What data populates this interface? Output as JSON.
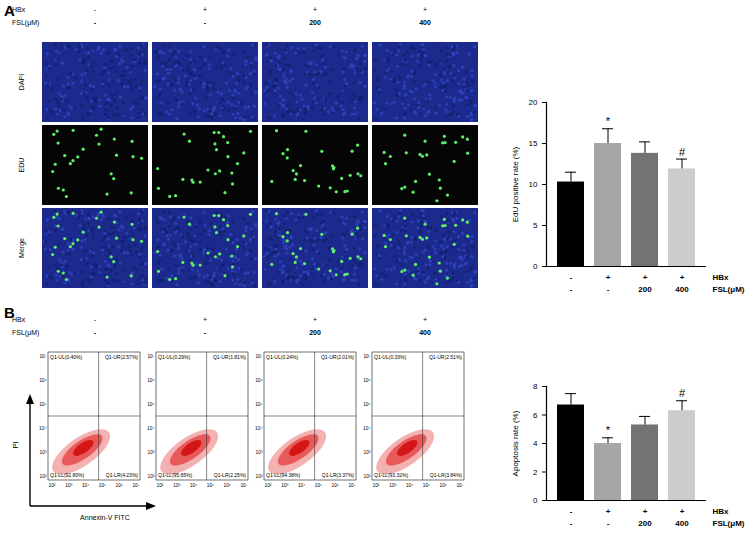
{
  "panels": [
    {
      "label": "A",
      "conditions": [
        {
          "label": "HBx",
          "values": [
            "-",
            "+",
            "+",
            "+"
          ]
        },
        {
          "label": "FSL(μM)",
          "values": [
            "-",
            "-",
            "200",
            "400"
          ]
        }
      ],
      "image_rows": [
        "DAPI",
        "EDU",
        "Merge"
      ]
    },
    {
      "label": "B",
      "conditions": [
        {
          "label": "HBx",
          "values": [
            "-",
            "+",
            "+",
            "+"
          ]
        },
        {
          "label": "FSL(μM)",
          "values": [
            "-",
            "-",
            "200",
            "400"
          ]
        }
      ],
      "flow": {
        "x_label": "Annexin-V FITC",
        "y_label": "PI",
        "ticks": [
          "10²",
          "10³",
          "10⁴",
          "10⁵",
          "10⁶",
          "10⁷"
        ],
        "plots": [
          {
            "UL": "Q1-UL(0.40%)",
            "UR": "Q1-UR(2.57%)",
            "LL": "Q1-LL(92.80%)",
            "LR": "Q1-LR(4.23%)"
          },
          {
            "UL": "Q1-UL(0.29%)",
            "UR": "Q1-UR(1.81%)",
            "LL": "Q1-LL(95.65%)",
            "LR": "Q1-LR(2.25%)"
          },
          {
            "UL": "Q1-UL(0.24%)",
            "UR": "Q1-UR(2.01%)",
            "LL": "Q1-LL(94.38%)",
            "LR": "Q1-LR(3.37%)"
          },
          {
            "UL": "Q1-UL(0.33%)",
            "UR": "Q1-UR(2.51%)",
            "LL": "Q1-LL(93.32%)",
            "LR": "Q1-LR(3.84%)"
          }
        ]
      }
    }
  ],
  "chart_data": [
    {
      "type": "bar",
      "y_label": "EdU positive rate (%)",
      "categories": [
        null,
        null,
        null,
        null
      ],
      "values": [
        10.3,
        15.0,
        13.8,
        11.9
      ],
      "errors": [
        1.2,
        1.8,
        1.4,
        1.2
      ],
      "colors": [
        "#000000",
        "#a6a6a6",
        "#737373",
        "#cccccc"
      ],
      "significance": [
        null,
        "*",
        null,
        "#"
      ],
      "condition_rows": [
        {
          "label": "HBx",
          "values": [
            "-",
            "+",
            "+",
            "+"
          ]
        },
        {
          "label": "FSL(μM)",
          "values": [
            "-",
            "-",
            "200",
            "400"
          ]
        }
      ],
      "ylim": [
        0,
        20
      ],
      "yticks": [
        0,
        5,
        10,
        15,
        20
      ]
    },
    {
      "type": "bar",
      "y_label": "Apoptosis rate (%)",
      "categories": [
        null,
        null,
        null,
        null
      ],
      "values": [
        6.7,
        4.0,
        5.3,
        6.3
      ],
      "errors": [
        0.8,
        0.4,
        0.6,
        0.7
      ],
      "colors": [
        "#000000",
        "#a6a6a6",
        "#737373",
        "#cccccc"
      ],
      "significance": [
        null,
        "*",
        null,
        "#"
      ],
      "condition_rows": [
        {
          "label": "HBx",
          "values": [
            "-",
            "+",
            "+",
            "+"
          ]
        },
        {
          "label": "FSL(μM)",
          "values": [
            "-",
            "-",
            "200",
            "400"
          ]
        }
      ],
      "ylim": [
        0,
        8
      ],
      "yticks": [
        0,
        2,
        4,
        6,
        8
      ]
    }
  ]
}
